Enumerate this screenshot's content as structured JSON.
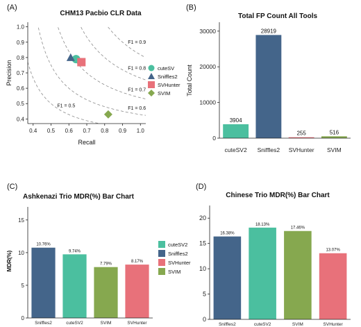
{
  "colors": {
    "cuteSV": "#4bbf9f",
    "Sniffles2": "#44658a",
    "SVHunter": "#e8717a",
    "SVIM": "#86a84f",
    "grid": "#8a8a8a"
  },
  "chart_data": [
    {
      "panel": "(A)",
      "type": "scatter",
      "title": "CHM13 Pacbio CLR Data",
      "xlabel": "Recall",
      "ylabel": "Precision",
      "xlim": [
        0.37,
        1.03
      ],
      "ylim": [
        0.37,
        1.03
      ],
      "xticks": [
        "0.4",
        "0.5",
        "0.6",
        "0.7",
        "0.8",
        "0.9",
        "1.0"
      ],
      "yticks": [
        "0.4",
        "0.5",
        "0.6",
        "0.7",
        "0.8",
        "0.9",
        "1.0"
      ],
      "f1_curves": [
        {
          "f1": 0.5,
          "label": "F1 = 0.5"
        },
        {
          "f1": 0.6,
          "label": "F1 = 0.6"
        },
        {
          "f1": 0.7,
          "label": "F1 = 0.7"
        },
        {
          "f1": 0.8,
          "label": "F1 = 0.8"
        },
        {
          "f1": 0.9,
          "label": "F1 = 0.9"
        }
      ],
      "points": [
        {
          "name": "cuteSV",
          "x": 0.64,
          "y": 0.79,
          "shape": "circle",
          "color": "#4bbf9f"
        },
        {
          "name": "Sniffles2",
          "x": 0.61,
          "y": 0.8,
          "shape": "triangle",
          "color": "#44658a"
        },
        {
          "name": "SVHunter",
          "x": 0.67,
          "y": 0.77,
          "shape": "square",
          "color": "#e8717a"
        },
        {
          "name": "SVIM",
          "x": 0.82,
          "y": 0.43,
          "shape": "diamond",
          "color": "#86a84f"
        }
      ],
      "legend": [
        "cuteSV",
        "Sniffles2",
        "SVHunter",
        "SVIM"
      ],
      "grid": false,
      "legend_position": "right"
    },
    {
      "panel": "(B)",
      "type": "bar",
      "title": "Total FP Count All Tools",
      "xlabel": "",
      "ylabel": "Total Count",
      "ylim": [
        0,
        32500
      ],
      "yticks": [
        0,
        10000,
        20000,
        30000
      ],
      "categories": [
        "cuteSV2",
        "Sniffles2",
        "SVHunter",
        "SVIM"
      ],
      "values": [
        3904,
        28919,
        255,
        516
      ],
      "value_labels": [
        "3904",
        "28919",
        "255",
        "516"
      ],
      "colors": [
        "#4bbf9f",
        "#44658a",
        "#e8717a",
        "#86a84f"
      ]
    },
    {
      "panel": "(C)",
      "type": "bar",
      "title": "Ashkenazi Trio MDR(%)  Bar Chart",
      "xlabel": "",
      "ylabel": "MDR(%)",
      "ylim": [
        0,
        17
      ],
      "yticks": [
        0,
        5,
        10,
        15
      ],
      "categories": [
        "Sniffles2",
        "cuteSV2",
        "SVIM",
        "SVHunter"
      ],
      "values": [
        10.76,
        9.74,
        7.79,
        8.17
      ],
      "value_labels": [
        "10.76%",
        "9.74%",
        "7.79%",
        "8.17%"
      ],
      "colors": [
        "#44658a",
        "#4bbf9f",
        "#86a84f",
        "#e8717a"
      ],
      "legend": [
        {
          "name": "cuteSV2",
          "color": "#4bbf9f"
        },
        {
          "name": "Sniffles2",
          "color": "#44658a"
        },
        {
          "name": "SVHunter",
          "color": "#e8717a"
        },
        {
          "name": "SVIM",
          "color": "#86a84f"
        }
      ],
      "legend_position": "right"
    },
    {
      "panel": "(D)",
      "type": "bar",
      "title": "Chinese Trio MDR(%) Bar Chart",
      "xlabel": "",
      "ylabel": "",
      "ylim": [
        0,
        22.5
      ],
      "yticks": [
        0,
        5,
        10,
        15,
        20
      ],
      "categories": [
        "Sniffles2",
        "cuteSV2",
        "SVIM",
        "SVHunter"
      ],
      "values": [
        16.38,
        18.13,
        17.46,
        13.07
      ],
      "value_labels": [
        "16.38%",
        "18.13%",
        "17.46%",
        "13.07%"
      ],
      "colors": [
        "#44658a",
        "#4bbf9f",
        "#86a84f",
        "#e8717a"
      ]
    }
  ]
}
